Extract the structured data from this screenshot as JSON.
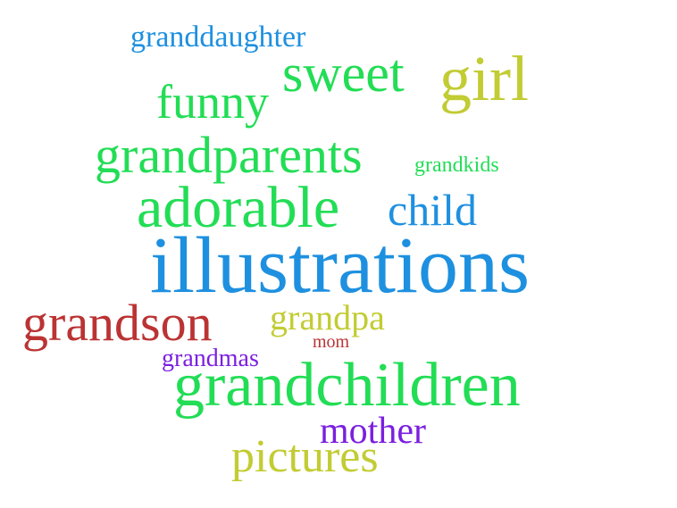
{
  "words": [
    {
      "text": "granddaughter",
      "weight": 2,
      "color": "#1e90e0"
    },
    {
      "text": "sweet",
      "weight": 5,
      "color": "#22dd55"
    },
    {
      "text": "girl",
      "weight": 6,
      "color": "#c2cc33"
    },
    {
      "text": "funny",
      "weight": 4,
      "color": "#22dd55"
    },
    {
      "text": "grandparents",
      "weight": 5,
      "color": "#22dd55"
    },
    {
      "text": "grandkids",
      "weight": 1,
      "color": "#22dd55"
    },
    {
      "text": "adorable",
      "weight": 6,
      "color": "#22dd55"
    },
    {
      "text": "child",
      "weight": 4,
      "color": "#1e90e0"
    },
    {
      "text": "illustrations",
      "weight": 8,
      "color": "#1e90e0"
    },
    {
      "text": "grandson",
      "weight": 5,
      "color": "#bb3333"
    },
    {
      "text": "grandpa",
      "weight": 3,
      "color": "#c2cc33"
    },
    {
      "text": "mom",
      "weight": 1,
      "color": "#bb3333"
    },
    {
      "text": "grandmas",
      "weight": 2,
      "color": "#7b1fe0"
    },
    {
      "text": "grandchildren",
      "weight": 7,
      "color": "#22dd55"
    },
    {
      "text": "mother",
      "weight": 3,
      "color": "#7b1fe0"
    },
    {
      "text": "pictures",
      "weight": 4,
      "color": "#c2cc33"
    }
  ]
}
